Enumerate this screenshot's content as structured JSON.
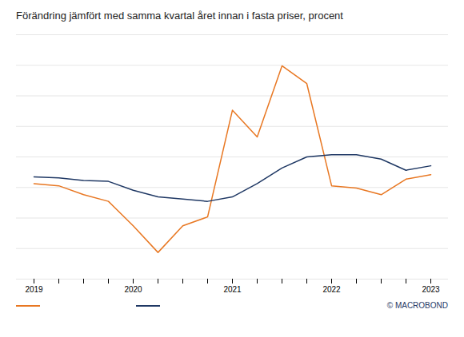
{
  "chart_data": {
    "type": "line",
    "title": "Förändring jämfört med samma kvartal året innan i fasta priser, procent",
    "categories": [
      "2019",
      null,
      null,
      null,
      "2020",
      null,
      null,
      null,
      "2021",
      null,
      null,
      null,
      "2022",
      null,
      null,
      null,
      "2023"
    ],
    "series": [
      {
        "color": "#E87722",
        "values": [
          1.5,
          1.0,
          -1.0,
          -2.5,
          -8.0,
          -14.0,
          -8.0,
          -6.0,
          18.0,
          12.0,
          28.0,
          24.0,
          1.0,
          0.5,
          -1.0,
          2.5,
          3.5
        ]
      },
      {
        "color": "#1F3864",
        "values": [
          3.0,
          2.8,
          2.2,
          2.0,
          0.0,
          -1.5,
          -2.0,
          -2.5,
          -1.5,
          1.5,
          5.0,
          7.5,
          8.0,
          8.0,
          7.0,
          4.5,
          5.5
        ]
      }
    ],
    "ylim": [
      -20,
      35
    ],
    "yticks": [
      -20,
      -13.125,
      -6.25,
      0.625,
      7.5,
      14.375,
      21.25,
      28.125,
      35
    ],
    "grid": true,
    "tick_labels": "x",
    "legend": "bottom",
    "annotations": [
      "©",
      "MACROBOND"
    ]
  }
}
